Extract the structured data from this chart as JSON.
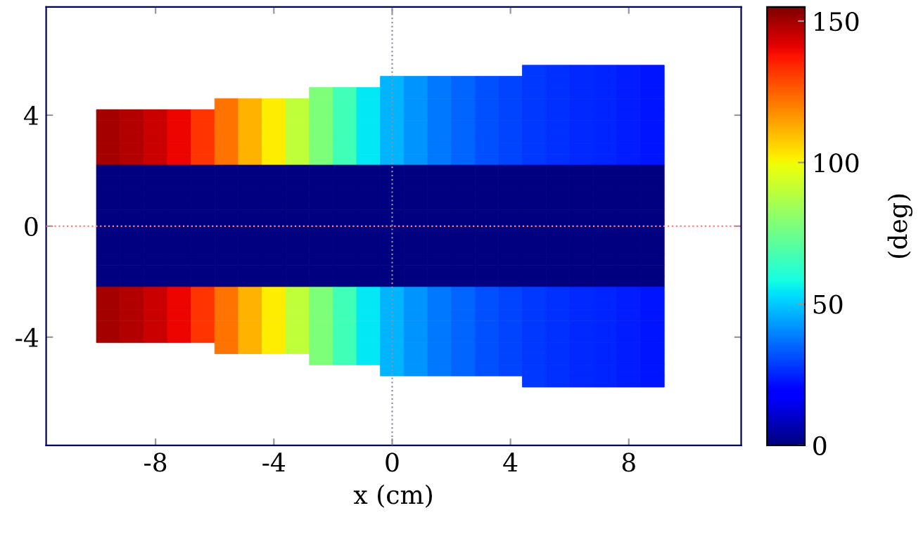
{
  "chart_data": {
    "type": "heatmap",
    "xlabel": "x (cm)",
    "clabel": "(deg)",
    "x": [
      -9.6,
      -8.8,
      -8,
      -7.2,
      -6.4,
      -5.6,
      -4.8,
      -4,
      -3.2,
      -2.4,
      -1.6,
      -0.8,
      0,
      0.8,
      1.6,
      2.4,
      3.2,
      4,
      4.8,
      5.6,
      6.4,
      7.2,
      8,
      8.8
    ],
    "y": [
      5.6,
      5.2,
      4.8,
      4.4,
      4.0,
      3.6,
      3.2,
      2.8,
      2.4,
      2.0,
      1.6,
      1.2,
      0.8,
      0.4,
      0,
      -0.4,
      -0.8,
      -1.2,
      -1.6,
      -2.0,
      -2.4,
      -2.8,
      -3.2,
      -3.6,
      -4.0,
      -4.4,
      -4.8,
      -5.2,
      -5.6
    ],
    "cells": [
      [
        null,
        null,
        null,
        null,
        null,
        null,
        null,
        null,
        null,
        null,
        null,
        null,
        null,
        null,
        null,
        null,
        null,
        null,
        28,
        27,
        26,
        25,
        24,
        23
      ],
      [
        null,
        null,
        null,
        null,
        null,
        null,
        null,
        null,
        null,
        null,
        null,
        null,
        47,
        42,
        38,
        35,
        32,
        30,
        28,
        27,
        26,
        25,
        24,
        23
      ],
      [
        null,
        null,
        null,
        null,
        null,
        null,
        null,
        null,
        null,
        78,
        66,
        55,
        47,
        42,
        38,
        35,
        32,
        30,
        28,
        27,
        26,
        25,
        24,
        23
      ],
      [
        null,
        null,
        null,
        null,
        null,
        122,
        112,
        102,
        90,
        78,
        66,
        55,
        47,
        42,
        38,
        35,
        32,
        30,
        28,
        27,
        26,
        25,
        24,
        23
      ],
      [
        150,
        148,
        145,
        140,
        132,
        122,
        112,
        102,
        90,
        78,
        66,
        55,
        47,
        42,
        38,
        35,
        32,
        30,
        28,
        27,
        26,
        25,
        24,
        23
      ],
      [
        150,
        148,
        145,
        140,
        132,
        122,
        112,
        102,
        90,
        78,
        66,
        55,
        47,
        42,
        38,
        35,
        32,
        30,
        28,
        27,
        26,
        25,
        24,
        23
      ],
      [
        150,
        148,
        145,
        140,
        132,
        122,
        112,
        102,
        90,
        78,
        66,
        55,
        47,
        42,
        38,
        35,
        32,
        30,
        28,
        27,
        26,
        25,
        24,
        23
      ],
      [
        150,
        148,
        145,
        140,
        132,
        122,
        112,
        102,
        90,
        78,
        66,
        55,
        47,
        42,
        38,
        35,
        32,
        30,
        28,
        27,
        26,
        25,
        24,
        23
      ],
      [
        150,
        148,
        145,
        140,
        132,
        122,
        112,
        102,
        90,
        78,
        66,
        55,
        47,
        42,
        38,
        35,
        32,
        30,
        28,
        27,
        26,
        25,
        24,
        23
      ],
      [
        0,
        0,
        0,
        0,
        0,
        0,
        0,
        0,
        0,
        0,
        0,
        0,
        0,
        0,
        0,
        0,
        0,
        0,
        0,
        0,
        0,
        0,
        0,
        0
      ],
      [
        0,
        0,
        0,
        0,
        0,
        0,
        0,
        0,
        0,
        0,
        0,
        0,
        0,
        0,
        0,
        0,
        0,
        0,
        0,
        0,
        0,
        0,
        0,
        0
      ],
      [
        0,
        0,
        0,
        0,
        0,
        0,
        0,
        0,
        0,
        0,
        0,
        0,
        0,
        0,
        0,
        0,
        0,
        0,
        0,
        0,
        0,
        0,
        0,
        0
      ],
      [
        0,
        0,
        0,
        0,
        0,
        0,
        0,
        0,
        0,
        0,
        0,
        0,
        0,
        0,
        0,
        0,
        0,
        0,
        0,
        0,
        0,
        0,
        0,
        0
      ],
      [
        0,
        0,
        0,
        0,
        0,
        0,
        0,
        0,
        0,
        0,
        0,
        0,
        0,
        0,
        0,
        0,
        0,
        0,
        0,
        0,
        0,
        0,
        0,
        0
      ],
      [
        0,
        0,
        0,
        0,
        0,
        0,
        0,
        0,
        0,
        0,
        0,
        0,
        0,
        0,
        0,
        0,
        0,
        0,
        0,
        0,
        0,
        0,
        0,
        0
      ],
      [
        0,
        0,
        0,
        0,
        0,
        0,
        0,
        0,
        0,
        0,
        0,
        0,
        0,
        0,
        0,
        0,
        0,
        0,
        0,
        0,
        0,
        0,
        0,
        0
      ],
      [
        0,
        0,
        0,
        0,
        0,
        0,
        0,
        0,
        0,
        0,
        0,
        0,
        0,
        0,
        0,
        0,
        0,
        0,
        0,
        0,
        0,
        0,
        0,
        0
      ],
      [
        0,
        0,
        0,
        0,
        0,
        0,
        0,
        0,
        0,
        0,
        0,
        0,
        0,
        0,
        0,
        0,
        0,
        0,
        0,
        0,
        0,
        0,
        0,
        0
      ],
      [
        0,
        0,
        0,
        0,
        0,
        0,
        0,
        0,
        0,
        0,
        0,
        0,
        0,
        0,
        0,
        0,
        0,
        0,
        0,
        0,
        0,
        0,
        0,
        0
      ],
      [
        0,
        0,
        0,
        0,
        0,
        0,
        0,
        0,
        0,
        0,
        0,
        0,
        0,
        0,
        0,
        0,
        0,
        0,
        0,
        0,
        0,
        0,
        0,
        0
      ],
      [
        150,
        148,
        145,
        140,
        132,
        122,
        112,
        102,
        90,
        78,
        66,
        55,
        47,
        42,
        38,
        35,
        32,
        30,
        28,
        27,
        26,
        25,
        24,
        23
      ],
      [
        150,
        148,
        145,
        140,
        132,
        122,
        112,
        102,
        90,
        78,
        66,
        55,
        47,
        42,
        38,
        35,
        32,
        30,
        28,
        27,
        26,
        25,
        24,
        23
      ],
      [
        150,
        148,
        145,
        140,
        132,
        122,
        112,
        102,
        90,
        78,
        66,
        55,
        47,
        42,
        38,
        35,
        32,
        30,
        28,
        27,
        26,
        25,
        24,
        23
      ],
      [
        150,
        148,
        145,
        140,
        132,
        122,
        112,
        102,
        90,
        78,
        66,
        55,
        47,
        42,
        38,
        35,
        32,
        30,
        28,
        27,
        26,
        25,
        24,
        23
      ],
      [
        150,
        148,
        145,
        140,
        132,
        122,
        112,
        102,
        90,
        78,
        66,
        55,
        47,
        42,
        38,
        35,
        32,
        30,
        28,
        27,
        26,
        25,
        24,
        23
      ],
      [
        null,
        null,
        null,
        null,
        null,
        122,
        112,
        102,
        90,
        78,
        66,
        55,
        47,
        42,
        38,
        35,
        32,
        30,
        28,
        27,
        26,
        25,
        24,
        23
      ],
      [
        null,
        null,
        null,
        null,
        null,
        null,
        null,
        null,
        null,
        78,
        66,
        55,
        47,
        42,
        38,
        35,
        32,
        30,
        28,
        27,
        26,
        25,
        24,
        23
      ],
      [
        null,
        null,
        null,
        null,
        null,
        null,
        null,
        null,
        null,
        null,
        null,
        null,
        47,
        42,
        38,
        35,
        32,
        30,
        28,
        27,
        26,
        25,
        24,
        23
      ],
      [
        null,
        null,
        null,
        null,
        null,
        null,
        null,
        null,
        null,
        null,
        null,
        null,
        null,
        null,
        null,
        null,
        null,
        null,
        28,
        27,
        26,
        25,
        24,
        23
      ]
    ],
    "clim": [
      0,
      155
    ],
    "cticks": [
      0,
      50,
      100,
      150
    ],
    "xlim": [
      -11.7,
      11.8
    ],
    "ylim": [
      -7.9,
      7.9
    ],
    "xticks": [
      -8,
      -4,
      0,
      4,
      8
    ],
    "yticks": [
      -4,
      0,
      4
    ],
    "ref_lines": [
      {
        "axis": "y",
        "value": 0,
        "color": "#ff8080",
        "line_style": "dotted"
      },
      {
        "axis": "x",
        "value": 0,
        "color": "#9090a0",
        "line_style": "dotted"
      }
    ],
    "grid": false
  }
}
